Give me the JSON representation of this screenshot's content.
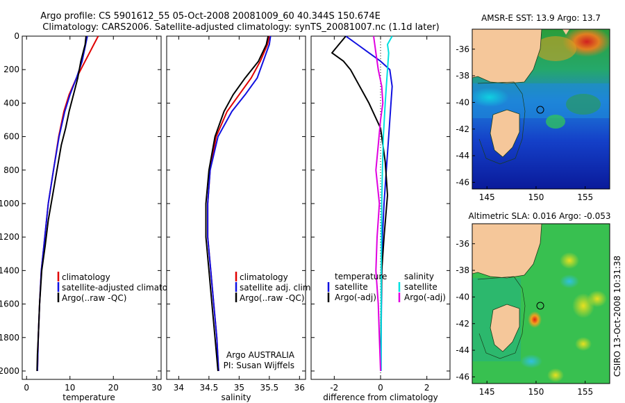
{
  "title_line1": "Argo profile: CS 5901612_55 05-Oct-2008 20081009_60 40.344S 150.674E",
  "title_line2": "Climatology: CARS2006. Satellite-adjusted climatology: synTS_20081007.nc (1.1d later)",
  "side_label": "CSIRO 13-Oct-2008 10:31:38",
  "credit_line1": "Argo AUSTRALIA",
  "credit_line2": "PI: Susan Wijffels",
  "colors": {
    "climatology": "#e00000",
    "satellite": "#1010e0",
    "argo": "#000000",
    "sal_diff": "#00e0e0",
    "sal_argo_diff": "#e000e0",
    "land": "#f5c79a"
  },
  "depth_ticks": [
    "0",
    "200",
    "400",
    "600",
    "800",
    "1000",
    "1200",
    "1400",
    "1600",
    "1800",
    "2000"
  ],
  "chart_data": [
    {
      "type": "line",
      "xlabel": "temperature",
      "ylabel": "",
      "xlim": [
        -1,
        31
      ],
      "ylim": [
        2050,
        0
      ],
      "xticks": [
        "0",
        "10",
        "20",
        "30"
      ],
      "legend": [
        "climatology",
        "satellite-adjusted climatology",
        "Argo(..raw -QC)"
      ],
      "series": [
        {
          "name": "climatology",
          "key": "climatology",
          "x": [
            16.5,
            15.5,
            13.5,
            11.5,
            9.8,
            8.6,
            7.4,
            6.2,
            5.0,
            4.2,
            3.4,
            3.0,
            2.7,
            2.6,
            2.5
          ],
          "y": [
            0,
            50,
            150,
            250,
            350,
            450,
            600,
            800,
            1000,
            1200,
            1400,
            1600,
            1800,
            1900,
            2000
          ]
        },
        {
          "name": "satellite-adjusted climatology",
          "key": "satellite",
          "x": [
            14.0,
            13.6,
            12.8,
            11.5,
            10.0,
            8.8,
            7.5,
            6.2,
            5.0,
            4.2,
            3.4,
            3.0,
            2.7,
            2.6,
            2.5
          ],
          "y": [
            0,
            50,
            150,
            250,
            350,
            450,
            600,
            800,
            1000,
            1200,
            1400,
            1600,
            1800,
            1900,
            2000
          ]
        },
        {
          "name": "Argo(..raw -QC)",
          "key": "argo",
          "x": [
            13.7,
            13.5,
            12.5,
            11.8,
            10.8,
            9.8,
            9.0,
            8.0,
            7.0,
            6.0,
            5.0,
            4.3,
            3.5,
            3.0,
            2.7,
            2.5,
            2.4
          ],
          "y": [
            0,
            50,
            150,
            250,
            350,
            450,
            550,
            650,
            800,
            950,
            1100,
            1250,
            1400,
            1600,
            1800,
            1900,
            2000
          ]
        }
      ]
    },
    {
      "type": "line",
      "xlabel": "salinity",
      "ylabel": "",
      "xlim": [
        33.8,
        36.1
      ],
      "ylim": [
        2050,
        0
      ],
      "xticks": [
        "34",
        "34.5",
        "35",
        "35.5",
        "36"
      ],
      "legend": [
        "climatology",
        "satellite adj. clim.",
        "Argo(..raw -QC)"
      ],
      "series": [
        {
          "name": "climatology",
          "key": "climatology",
          "x": [
            35.5,
            35.47,
            35.35,
            35.2,
            35.0,
            34.8,
            34.62,
            34.52,
            34.48,
            34.48,
            34.53,
            34.58,
            34.63,
            34.66
          ],
          "y": [
            0,
            50,
            150,
            250,
            350,
            450,
            600,
            800,
            1000,
            1200,
            1400,
            1600,
            1800,
            2000
          ]
        },
        {
          "name": "satellite adj. clim.",
          "key": "satellite",
          "x": [
            35.52,
            35.5,
            35.4,
            35.3,
            35.1,
            34.88,
            34.65,
            34.52,
            34.48,
            34.48,
            34.53,
            34.58,
            34.63,
            34.66
          ],
          "y": [
            0,
            50,
            150,
            250,
            350,
            450,
            600,
            800,
            1000,
            1200,
            1400,
            1600,
            1800,
            2000
          ]
        },
        {
          "name": "Argo(..raw -QC)",
          "key": "argo",
          "x": [
            35.48,
            35.45,
            35.32,
            35.1,
            34.9,
            34.75,
            34.6,
            34.5,
            34.45,
            34.45,
            34.5,
            34.55,
            34.6,
            34.65
          ],
          "y": [
            0,
            50,
            150,
            250,
            350,
            450,
            600,
            800,
            1000,
            1200,
            1400,
            1600,
            1800,
            2000
          ]
        }
      ]
    },
    {
      "type": "line",
      "xlabel": "difference from climatology",
      "ylabel": "",
      "xlim": [
        -3,
        3
      ],
      "ylim": [
        2050,
        0
      ],
      "xticks": [
        "-2",
        "0",
        "2"
      ],
      "legend_left_header": "temperature",
      "legend_right_header": "salinity",
      "legend_left": [
        "satellite",
        "Argo(-adj)"
      ],
      "legend_right": [
        "satellite",
        "Argo(-adj)"
      ],
      "series": [
        {
          "name": "temperature satellite",
          "key": "satellite",
          "x": [
            -1.5,
            -1.0,
            -0.5,
            0.0,
            0.4,
            0.5,
            0.45,
            0.35,
            0.25,
            0.15,
            0.08,
            0.05,
            0.03,
            0.02
          ],
          "y": [
            0,
            50,
            100,
            150,
            200,
            300,
            400,
            600,
            800,
            1000,
            1200,
            1400,
            1700,
            2000
          ]
        },
        {
          "name": "temperature Argo(-adj)",
          "key": "argo",
          "x": [
            -1.5,
            -1.8,
            -2.1,
            -1.6,
            -1.3,
            -0.9,
            -0.5,
            0.0,
            0.2,
            0.3,
            0.15,
            0.05,
            0.02,
            0.0
          ],
          "y": [
            0,
            50,
            100,
            150,
            200,
            300,
            400,
            550,
            750,
            950,
            1200,
            1400,
            1700,
            2000
          ]
        },
        {
          "name": "salinity satellite",
          "key": "sal_diff",
          "x": [
            0.5,
            0.3,
            0.35,
            0.3,
            0.25,
            0.2,
            0.12,
            0.08,
            0.05,
            0.03,
            0.02
          ],
          "y": [
            0,
            50,
            100,
            200,
            300,
            400,
            600,
            800,
            1000,
            1400,
            2000
          ]
        },
        {
          "name": "salinity Argo(-adj)",
          "key": "sal_argo_diff",
          "x": [
            -0.3,
            -0.2,
            -0.1,
            0.05,
            0.1,
            0.0,
            -0.1,
            -0.2,
            -0.05,
            -0.15,
            -0.2,
            -0.1,
            -0.05,
            0.0
          ],
          "y": [
            0,
            100,
            200,
            300,
            400,
            500,
            650,
            800,
            1000,
            1200,
            1400,
            1600,
            1800,
            2000
          ]
        }
      ]
    },
    {
      "type": "heatmap",
      "title": "AMSR-E SST: 13.9 Argo: 13.7",
      "xlim": [
        143.5,
        157.5
      ],
      "ylim": [
        -46.5,
        -34.5
      ],
      "xticks": [
        "145",
        "150",
        "155"
      ],
      "yticks": [
        "-36",
        "-38",
        "-40",
        "-42",
        "-44",
        "-46"
      ],
      "argo_position": {
        "lon": 150.674,
        "lat": -40.344
      }
    },
    {
      "type": "heatmap",
      "title": "Altimetric SLA: 0.016 Argo: -0.053",
      "xlim": [
        143.5,
        157.5
      ],
      "ylim": [
        -46.5,
        -34.5
      ],
      "xticks": [
        "145",
        "150",
        "155"
      ],
      "yticks": [
        "-36",
        "-38",
        "-40",
        "-42",
        "-44",
        "-46"
      ],
      "argo_position": {
        "lon": 150.674,
        "lat": -40.344
      }
    }
  ]
}
